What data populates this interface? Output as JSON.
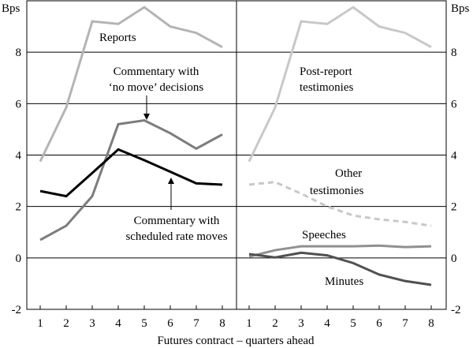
{
  "chart_data": {
    "type": "line",
    "unit_label": "Bps",
    "xlabel": "Futures contract – quarters ahead",
    "ylim": [
      -2,
      10
    ],
    "yticks": [
      -2,
      0,
      2,
      4,
      6,
      8
    ],
    "categories": [
      1,
      2,
      3,
      4,
      5,
      6,
      7,
      8
    ],
    "panels": [
      {
        "name": "left",
        "series": [
          {
            "name": "Reports",
            "color": "#b4b4b4",
            "dash": "",
            "values": [
              3.75,
              5.85,
              9.2,
              9.1,
              9.75,
              9.0,
              8.75,
              8.2
            ]
          },
          {
            "name": "Commentary with ‘no move’ decisions",
            "color": "#7c7c7c",
            "dash": "",
            "values": [
              0.7,
              1.25,
              2.4,
              5.2,
              5.35,
              4.85,
              4.25,
              4.8
            ]
          },
          {
            "name": "Commentary with scheduled rate moves",
            "color": "#000000",
            "dash": "",
            "values": [
              2.6,
              2.4,
              3.3,
              4.22,
              3.8,
              3.35,
              2.9,
              2.85
            ]
          }
        ]
      },
      {
        "name": "right",
        "series": [
          {
            "name": "Post-report testimonies",
            "color": "#c8c8c8",
            "dash": "",
            "values": [
              3.75,
              5.85,
              9.2,
              9.1,
              9.75,
              9.0,
              8.75,
              8.2
            ]
          },
          {
            "name": "Other testimonies",
            "color": "#c8c8c8",
            "dash": "7,5",
            "values": [
              2.85,
              2.95,
              2.5,
              2.0,
              1.65,
              1.5,
              1.4,
              1.25
            ]
          },
          {
            "name": "Speeches",
            "color": "#909090",
            "dash": "",
            "values": [
              0.05,
              0.3,
              0.45,
              0.45,
              0.45,
              0.48,
              0.42,
              0.45
            ]
          },
          {
            "name": "Minutes",
            "color": "#505050",
            "dash": "",
            "values": [
              0.15,
              0.02,
              0.2,
              0.1,
              -0.2,
              -0.65,
              -0.9,
              -1.05
            ]
          }
        ]
      }
    ],
    "annotations": {
      "reports": "Reports",
      "no_move_1": "Commentary with",
      "no_move_2": "‘no move’ decisions",
      "scheduled_1": "Commentary with",
      "scheduled_2": "scheduled rate moves",
      "post_report_1": "Post-report",
      "post_report_2": "testimonies",
      "other_1": "Other",
      "other_2": "testimonies",
      "speeches": "Speeches",
      "minutes": "Minutes"
    }
  }
}
